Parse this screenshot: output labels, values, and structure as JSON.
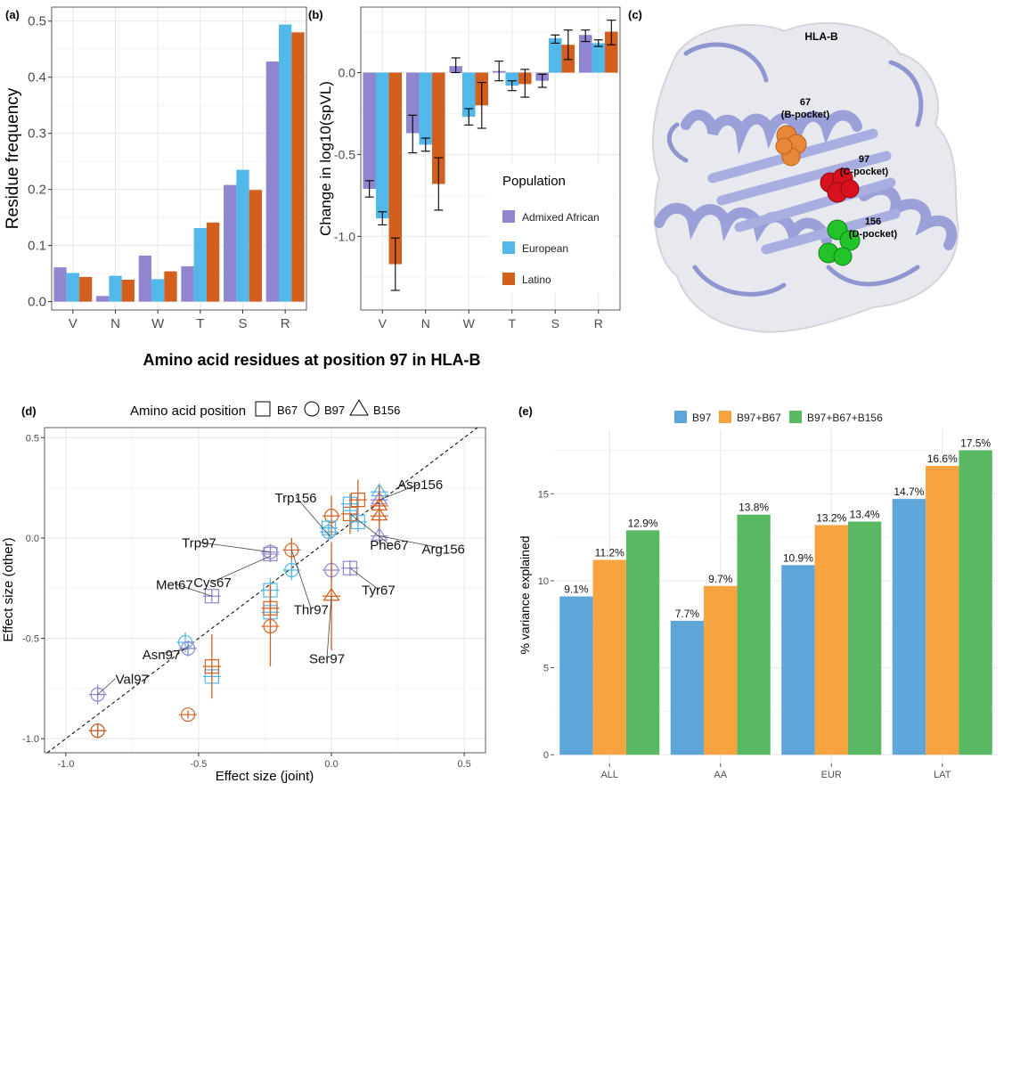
{
  "colors": {
    "admixed_african": "#8f86cf",
    "european": "#52b7e9",
    "latino": "#d35f1e",
    "b97": "#5ea5da",
    "b97_b67": "#f6a340",
    "b97_b67_b156": "#59b963",
    "protein": "#a9aee0",
    "res67": "#e6873a",
    "res97": "#d7121e",
    "res156": "#22c42a"
  },
  "panels": {
    "a": "(a)",
    "b": "(b)",
    "c": "(c)",
    "d": "(d)",
    "e": "(e)"
  },
  "shared_xlabel": "Amino acid residues at position 97 in HLA-B",
  "structure": {
    "title": "HLA-B",
    "labels": [
      {
        "num": "67",
        "pocket": "(B-pocket)"
      },
      {
        "num": "97",
        "pocket": "(C-pocket)"
      },
      {
        "num": "156",
        "pocket": "(D-pocket)"
      }
    ]
  },
  "chart_data": [
    {
      "id": "a",
      "type": "bar",
      "categories": [
        "V",
        "N",
        "W",
        "T",
        "S",
        "R"
      ],
      "series": [
        {
          "name": "Admixed African",
          "values": [
            0.061,
            0.01,
            0.082,
            0.063,
            0.208,
            0.428
          ]
        },
        {
          "name": "European",
          "values": [
            0.051,
            0.046,
            0.04,
            0.131,
            0.235,
            0.494
          ]
        },
        {
          "name": "Latino",
          "values": [
            0.044,
            0.039,
            0.054,
            0.141,
            0.199,
            0.48
          ]
        }
      ],
      "ylabel": "Residue frequency",
      "ylim": [
        -0.015,
        0.525
      ],
      "yticks": [
        0.0,
        0.1,
        0.2,
        0.3,
        0.4,
        0.5
      ],
      "ytick_labels": [
        "0.0",
        "0.1",
        "0.2",
        "0.3",
        "0.4",
        "0.5"
      ]
    },
    {
      "id": "b",
      "type": "bar",
      "categories": [
        "V",
        "N",
        "W",
        "T",
        "S",
        "R"
      ],
      "series": [
        {
          "name": "Admixed African",
          "values": [
            -0.71,
            -0.37,
            0.04,
            0.01,
            -0.05,
            0.23
          ],
          "lo": [
            -0.76,
            -0.49,
            0.0,
            -0.05,
            -0.09,
            0.19
          ],
          "hi": [
            -0.66,
            -0.26,
            0.09,
            0.07,
            -0.01,
            0.26
          ]
        },
        {
          "name": "European",
          "values": [
            -0.89,
            -0.44,
            -0.27,
            -0.08,
            0.21,
            0.18
          ],
          "lo": [
            -0.93,
            -0.48,
            -0.32,
            -0.11,
            0.18,
            0.16
          ],
          "hi": [
            -0.85,
            -0.4,
            -0.22,
            -0.05,
            0.23,
            0.2
          ]
        },
        {
          "name": "Latino",
          "values": [
            -1.17,
            -0.68,
            -0.2,
            -0.07,
            0.17,
            0.25
          ],
          "lo": [
            -1.33,
            -0.84,
            -0.34,
            -0.15,
            0.08,
            0.17
          ],
          "hi": [
            -1.01,
            -0.52,
            -0.06,
            0.02,
            0.26,
            0.32
          ]
        }
      ],
      "ylabel": "Change in log10(spVL)",
      "ylim": [
        -1.45,
        0.4
      ],
      "yticks": [
        -1.0,
        -0.5,
        0.0
      ],
      "ytick_labels": [
        "-1.0",
        "-0.5",
        "0.0"
      ],
      "legend_title": "Population",
      "legend_position": "bottom-right"
    },
    {
      "id": "d",
      "type": "scatter",
      "xlabel": "Effect size (joint)",
      "ylabel": "Effect size (other)",
      "xlim": [
        -1.08,
        0.58
      ],
      "ylim": [
        -1.07,
        0.55
      ],
      "xticks": [
        -1.0,
        -0.5,
        0.0,
        0.5
      ],
      "xtick_labels": [
        "-1.0",
        "-0.5",
        "0.0",
        "0.5"
      ],
      "yticks": [
        -1.0,
        -0.5,
        0.0,
        0.5
      ],
      "ytick_labels": [
        "-1.0",
        "-0.5",
        "0.0",
        "0.5"
      ],
      "legend_title": "Amino acid position",
      "legend_entries": [
        "B67",
        "B97",
        "B156"
      ],
      "legend_position": "top",
      "reference_line": "y = x",
      "points": [
        {
          "x": -0.88,
          "y": -0.78,
          "shape": "circle",
          "pop": "admixed_african",
          "err": 0.05
        },
        {
          "x": -0.88,
          "y": -0.96,
          "shape": "circle",
          "pop": "european",
          "err": 0.03
        },
        {
          "x": -0.88,
          "y": -0.96,
          "shape": "circle",
          "pop": "latino",
          "err": 0.03
        },
        {
          "x": -0.54,
          "y": -0.88,
          "shape": "circle",
          "pop": "latino",
          "err": 0.02
        },
        {
          "x": -0.55,
          "y": -0.52,
          "shape": "circle",
          "pop": "european",
          "err": 0.05
        },
        {
          "x": -0.54,
          "y": -0.55,
          "shape": "circle",
          "pop": "admixed_african",
          "err": 0.04
        },
        {
          "x": -0.45,
          "y": -0.29,
          "shape": "square",
          "pop": "admixed_african",
          "err": 0.03
        },
        {
          "x": -0.45,
          "y": -0.69,
          "shape": "square",
          "pop": "european",
          "err": 0.05
        },
        {
          "x": -0.45,
          "y": -0.64,
          "shape": "square",
          "pop": "latino",
          "err": 0.16
        },
        {
          "x": -0.23,
          "y": -0.07,
          "shape": "circle",
          "pop": "admixed_african",
          "err": 0.04
        },
        {
          "x": -0.23,
          "y": -0.08,
          "shape": "square",
          "pop": "admixed_african",
          "err": 0.04
        },
        {
          "x": -0.23,
          "y": -0.26,
          "shape": "square",
          "pop": "european",
          "err": 0.06
        },
        {
          "x": -0.23,
          "y": -0.37,
          "shape": "square",
          "pop": "european",
          "err": 0.06
        },
        {
          "x": -0.23,
          "y": -0.35,
          "shape": "square",
          "pop": "latino",
          "err": 0.12
        },
        {
          "x": -0.23,
          "y": -0.44,
          "shape": "circle",
          "pop": "latino",
          "err": 0.2
        },
        {
          "x": -0.15,
          "y": -0.06,
          "shape": "circle",
          "pop": "latino",
          "err": 0.06
        },
        {
          "x": -0.15,
          "y": -0.16,
          "shape": "circle",
          "pop": "european",
          "err": 0.05
        },
        {
          "x": -0.01,
          "y": 0.03,
          "shape": "circle",
          "pop": "european",
          "err": 0.04
        },
        {
          "x": 0.0,
          "y": 0.11,
          "shape": "circle",
          "pop": "latino",
          "err": 0.1
        },
        {
          "x": 0.0,
          "y": -0.16,
          "shape": "circle",
          "pop": "admixed_african",
          "err": 0.05
        },
        {
          "x": 0.0,
          "y": -0.29,
          "shape": "triangle",
          "pop": "latino",
          "err": 0.27
        },
        {
          "x": -0.01,
          "y": 0.05,
          "shape": "square",
          "pop": "european",
          "err": 0.04
        },
        {
          "x": 0.07,
          "y": 0.12,
          "shape": "square",
          "pop": "latino",
          "err": 0.1
        },
        {
          "x": 0.07,
          "y": 0.17,
          "shape": "square",
          "pop": "european",
          "err": 0.05
        },
        {
          "x": 0.07,
          "y": -0.15,
          "shape": "square",
          "pop": "admixed_african",
          "err": 0.04
        },
        {
          "x": 0.1,
          "y": 0.19,
          "shape": "square",
          "pop": "latino",
          "err": 0.1
        },
        {
          "x": 0.1,
          "y": 0.08,
          "shape": "square",
          "pop": "european",
          "err": 0.05
        },
        {
          "x": 0.18,
          "y": 0.23,
          "shape": "triangle",
          "pop": "european",
          "err": 0.04
        },
        {
          "x": 0.18,
          "y": 0.19,
          "shape": "triangle",
          "pop": "admixed_african",
          "err": 0.04
        },
        {
          "x": 0.18,
          "y": 0.16,
          "shape": "triangle",
          "pop": "latino",
          "err": 0.1
        },
        {
          "x": 0.18,
          "y": 0.11,
          "shape": "triangle",
          "pop": "latino",
          "err": 0.1
        },
        {
          "x": 0.18,
          "y": 0.01,
          "shape": "triangle",
          "pop": "admixed_african",
          "err": 0.04
        }
      ],
      "annotations": [
        {
          "text": "Val97",
          "x": -0.88,
          "y": -0.78
        },
        {
          "text": "Asn97",
          "x": -0.54,
          "y": -0.55
        },
        {
          "text": "Met67",
          "x": -0.45,
          "y": -0.29
        },
        {
          "text": "Cys67",
          "x": -0.23,
          "y": -0.09
        },
        {
          "text": "Trp97",
          "x": -0.23,
          "y": -0.07
        },
        {
          "text": "Thr97",
          "x": -0.15,
          "y": -0.06
        },
        {
          "text": "Ser97",
          "x": 0.0,
          "y": -0.29
        },
        {
          "text": "Trp156",
          "x": 0.0,
          "y": 0.0
        },
        {
          "text": "Tyr67",
          "x": 0.07,
          "y": -0.15
        },
        {
          "text": "Phe67",
          "x": 0.07,
          "y": 0.12
        },
        {
          "text": "Asp156",
          "x": 0.18,
          "y": 0.19
        },
        {
          "text": "Arg156",
          "x": 0.18,
          "y": 0.01
        }
      ]
    },
    {
      "id": "e",
      "type": "bar",
      "categories": [
        "ALL",
        "AA",
        "EUR",
        "LAT"
      ],
      "series": [
        {
          "name": "B97",
          "values": [
            9.1,
            7.7,
            10.9,
            14.7
          ],
          "labels": [
            "9.1%",
            "7.7%",
            "10.9%",
            "14.7%"
          ]
        },
        {
          "name": "B97+B67",
          "values": [
            11.2,
            9.7,
            13.2,
            16.6
          ],
          "labels": [
            "11.2%",
            "9.7%",
            "13.2%",
            "16.6%"
          ]
        },
        {
          "name": "B97+B67+B156",
          "values": [
            12.9,
            13.8,
            13.4,
            17.5
          ],
          "labels": [
            "12.9%",
            "13.8%",
            "13.4%",
            "17.5%"
          ]
        }
      ],
      "ylabel": "% variance explained",
      "ylim": [
        -0.5,
        18.7
      ],
      "yticks": [
        0,
        5,
        10,
        15
      ],
      "ytick_labels": [
        "0",
        "5",
        "10",
        "15"
      ],
      "legend_position": "top"
    }
  ]
}
